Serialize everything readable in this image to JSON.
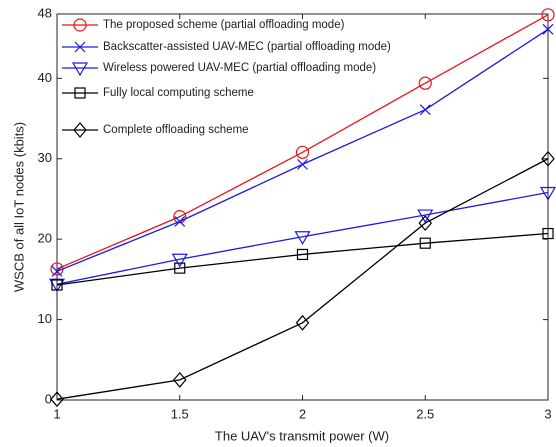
{
  "chart_data": {
    "type": "line",
    "x": [
      1,
      1.5,
      2,
      2.5,
      3
    ],
    "xlabel": "The UAV's transmit power (W)",
    "ylabel": "WSCB of all IoT nodes (kbits)",
    "xlim": [
      1,
      3
    ],
    "xticks": [
      1,
      1.5,
      2,
      2.5,
      3
    ],
    "ylim": [
      0,
      48
    ],
    "yticks": [
      0,
      10,
      20,
      30,
      40,
      48
    ],
    "grid": false,
    "legend": "upper left",
    "series": [
      {
        "name": "The proposed scheme (partial offloading mode)",
        "color": "#e8141b",
        "marker": "circle",
        "values": [
          16.3,
          22.8,
          30.8,
          39.4,
          47.9
        ]
      },
      {
        "name": "Backscatter-assisted UAV-MEC  (partial offloading mode)",
        "color": "#1a1ae6",
        "marker": "x",
        "values": [
          16.0,
          22.2,
          29.3,
          36.1,
          46.1
        ]
      },
      {
        "name": "Wireless powered UAV-MEC  (partial offloading mode)",
        "color": "#1a1ae6",
        "marker": "triangle-down",
        "values": [
          14.4,
          17.5,
          20.3,
          23.0,
          25.8
        ]
      },
      {
        "name": "Fully local computing scheme",
        "color": "#000000",
        "marker": "square",
        "values": [
          14.3,
          16.4,
          18.1,
          19.5,
          20.7
        ]
      },
      {
        "name": "Complete offloading scheme",
        "color": "#000000",
        "marker": "diamond",
        "values": [
          0.1,
          2.5,
          9.6,
          22.0,
          30.0
        ]
      }
    ]
  }
}
